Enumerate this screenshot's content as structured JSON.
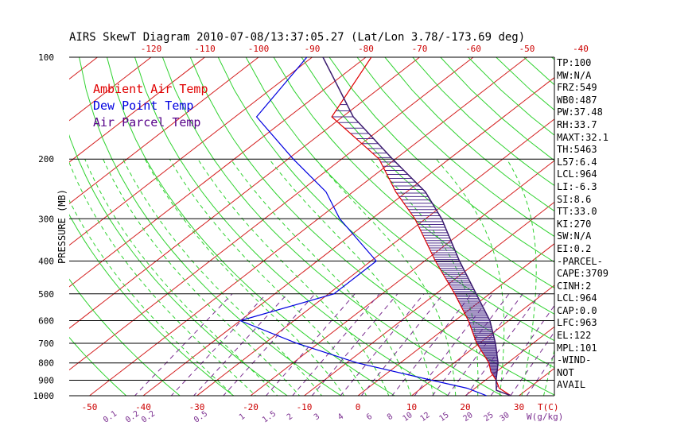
{
  "chart_data": {
    "type": "skew-t",
    "title": "AIRS SkewT Diagram 2010-07-08/13:37:05.27 (Lat/Lon 3.78/-173.69 deg)",
    "ylabel": "PRESSURE (MB)",
    "y_ticks": [
      "100",
      "200",
      "300",
      "400",
      "500",
      "600",
      "700",
      "800",
      "900",
      "1000"
    ],
    "pressure_levels": [
      100,
      200,
      300,
      400,
      500,
      600,
      700,
      800,
      900,
      1000
    ],
    "top_axis": {
      "ticks": [
        "-120",
        "-110",
        "-100",
        "-90",
        "-80",
        "-70",
        "-60",
        "-50",
        "-40"
      ],
      "values": [
        -120,
        -110,
        -100,
        -90,
        -80,
        -70,
        -60,
        -50,
        -40
      ]
    },
    "bottom_axis": {
      "ticks": [
        "-50",
        "-40",
        "-30",
        "-20",
        "-10",
        "0",
        "10",
        "20",
        "30"
      ],
      "values": [
        -50,
        -40,
        -30,
        -20,
        -10,
        0,
        10,
        20,
        30
      ],
      "unit_label": "T(C)"
    },
    "mixing_ratio": {
      "labels": [
        "0.1",
        "0.2",
        "0.2",
        "0.5",
        "1",
        "1.5",
        "2",
        "3",
        "4",
        "6",
        "8",
        "10",
        "12",
        "15",
        "20",
        "25",
        "30"
      ],
      "unit_label": "W(g/kg)"
    },
    "legend": [
      {
        "label": "Ambient Air Temp",
        "color": "#e00000"
      },
      {
        "label": "Dew Point Temp",
        "color": "#0000e0"
      },
      {
        "label": "Air Parcel Temp",
        "color": "#550088"
      }
    ],
    "series": [
      {
        "name": "Ambient Air Temp",
        "points": [
          {
            "p": 1000,
            "t": 28.5
          },
          {
            "p": 950,
            "t": 24.5
          },
          {
            "p": 900,
            "t": 22.0
          },
          {
            "p": 850,
            "t": 19.0
          },
          {
            "p": 800,
            "t": 16.5
          },
          {
            "p": 700,
            "t": 9.5
          },
          {
            "p": 600,
            "t": 2.5
          },
          {
            "p": 500,
            "t": -6.5
          },
          {
            "p": 400,
            "t": -18.0
          },
          {
            "p": 300,
            "t": -32.0
          },
          {
            "p": 250,
            "t": -42.0
          },
          {
            "p": 200,
            "t": -53.0
          },
          {
            "p": 150,
            "t": -72.0
          },
          {
            "p": 100,
            "t": -79.0
          }
        ]
      },
      {
        "name": "Dew Point Temp",
        "points": [
          {
            "p": 1000,
            "t": 24.0
          },
          {
            "p": 950,
            "t": 18.5
          },
          {
            "p": 900,
            "t": 10.0
          },
          {
            "p": 800,
            "t": -8.0
          },
          {
            "p": 700,
            "t": -24.0
          },
          {
            "p": 600,
            "t": -40.0
          },
          {
            "p": 500,
            "t": -29.0
          },
          {
            "p": 400,
            "t": -29.0
          },
          {
            "p": 300,
            "t": -46.0
          },
          {
            "p": 250,
            "t": -55.0
          },
          {
            "p": 200,
            "t": -69.0
          },
          {
            "p": 150,
            "t": -86.0
          },
          {
            "p": 100,
            "t": -91.0
          }
        ]
      },
      {
        "name": "Air Parcel Temp",
        "points": [
          {
            "p": 1000,
            "t": 28.5
          },
          {
            "p": 964,
            "t": 24.5
          },
          {
            "p": 900,
            "t": 22.0
          },
          {
            "p": 800,
            "t": 18.2
          },
          {
            "p": 700,
            "t": 13.0
          },
          {
            "p": 600,
            "t": 6.5
          },
          {
            "p": 500,
            "t": -2.5
          },
          {
            "p": 400,
            "t": -13.5
          },
          {
            "p": 300,
            "t": -27.0
          },
          {
            "p": 250,
            "t": -36.5
          },
          {
            "p": 200,
            "t": -50.5
          },
          {
            "p": 150,
            "t": -68.0
          },
          {
            "p": 120,
            "t": -79.0
          },
          {
            "p": 100,
            "t": -88.0
          }
        ]
      }
    ],
    "stats": [
      "TP:100",
      "MW:N/A",
      "FRZ:549",
      "WB0:487",
      "PW:37.48",
      "RH:33.7",
      "MAXT:32.1",
      "TH:5463",
      "L57:6.4",
      "LCL:964",
      "LI:-6.3",
      "SI:8.6",
      "TT:33.0",
      "KI:270",
      "SW:N/A",
      "EI:0.2",
      "-PARCEL-",
      "CAPE:3709",
      "CINH:2",
      "LCL:964",
      "CAP:0.0",
      "LFC:963",
      "EL:122",
      "MPL:101",
      "-WIND-",
      "NOT",
      "AVAIL"
    ]
  }
}
